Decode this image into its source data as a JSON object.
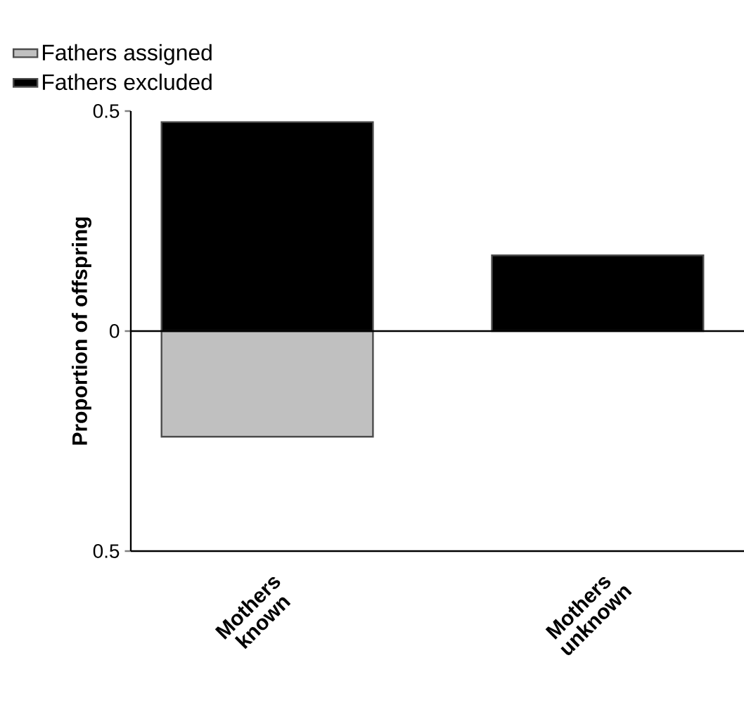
{
  "chart_data": {
    "type": "bar",
    "ylabel": "Proportion of offspring",
    "categories": [
      "Mothers known",
      "Mothers unknown"
    ],
    "series": [
      {
        "name": "Fathers assigned",
        "color": "#c0c0c0",
        "values": [
          -0.24,
          null
        ]
      },
      {
        "name": "Fathers excluded",
        "color": "#000000",
        "values": [
          0.475,
          0.172
        ]
      }
    ],
    "ylim": [
      -0.5,
      0.5
    ],
    "yticks": [
      {
        "value": -0.5,
        "label": "0.5"
      },
      0,
      0.5
    ],
    "legend": "top left",
    "stacked": true
  }
}
